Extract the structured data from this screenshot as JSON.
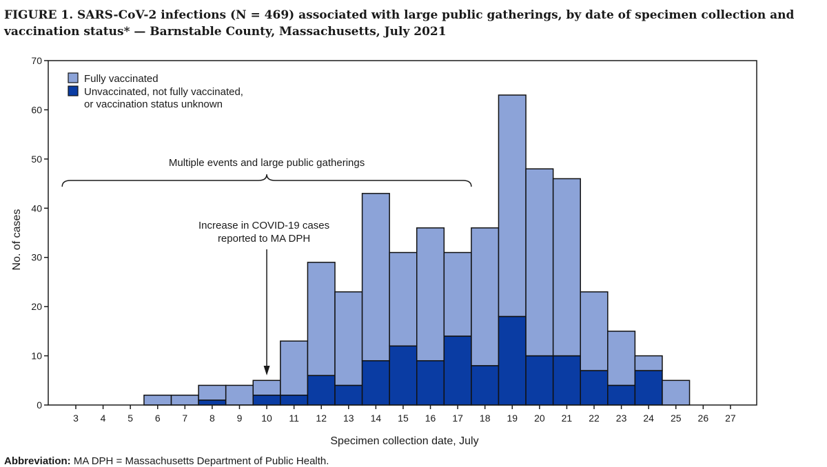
{
  "figure": {
    "title": "FIGURE 1. SARS-CoV-2 infections (N = 469) associated with large public gatherings, by date of specimen collection and vaccination status* — Barnstable County, Massachusetts, July 2021",
    "footnote_label": "Abbreviation:",
    "footnote_text": " MA DPH = Massachusetts Department of Public Health."
  },
  "chart_data": {
    "type": "bar",
    "stacked": true,
    "categories": [
      "3",
      "4",
      "5",
      "6",
      "7",
      "8",
      "9",
      "10",
      "11",
      "12",
      "13",
      "14",
      "15",
      "16",
      "17",
      "18",
      "19",
      "20",
      "21",
      "22",
      "23",
      "24",
      "25",
      "26",
      "27"
    ],
    "series": [
      {
        "name": "Unvaccinated, not fully vaccinated, or vaccination status unknown",
        "legend_lines": [
          "Unvaccinated, not fully vaccinated,",
          "or vaccination status unknown"
        ],
        "color": "#0a3ca3",
        "values": [
          0,
          0,
          0,
          0,
          0,
          1,
          0,
          2,
          2,
          6,
          4,
          9,
          12,
          9,
          14,
          8,
          18,
          10,
          10,
          7,
          4,
          7,
          0,
          0,
          0
        ]
      },
      {
        "name": "Fully vaccinated",
        "legend_lines": [
          "Fully vaccinated"
        ],
        "color": "#8ca3d8",
        "values": [
          0,
          0,
          0,
          2,
          2,
          3,
          4,
          3,
          11,
          23,
          19,
          34,
          19,
          27,
          17,
          28,
          45,
          38,
          36,
          16,
          11,
          3,
          5,
          0,
          0
        ]
      }
    ],
    "xlabel": "Specimen collection date, July",
    "ylabel": "No. of cases",
    "ylim": [
      0,
      70
    ],
    "yticks": [
      0,
      10,
      20,
      30,
      40,
      50,
      60,
      70
    ],
    "grid": false,
    "legend_position": "top-left",
    "annotations": {
      "brace_label": "Multiple events and large public gatherings",
      "brace_from": "3",
      "brace_to": "17",
      "arrow_lines": [
        "Increase in COVID-19 cases",
        "reported to MA DPH"
      ],
      "arrow_at": "10"
    }
  }
}
